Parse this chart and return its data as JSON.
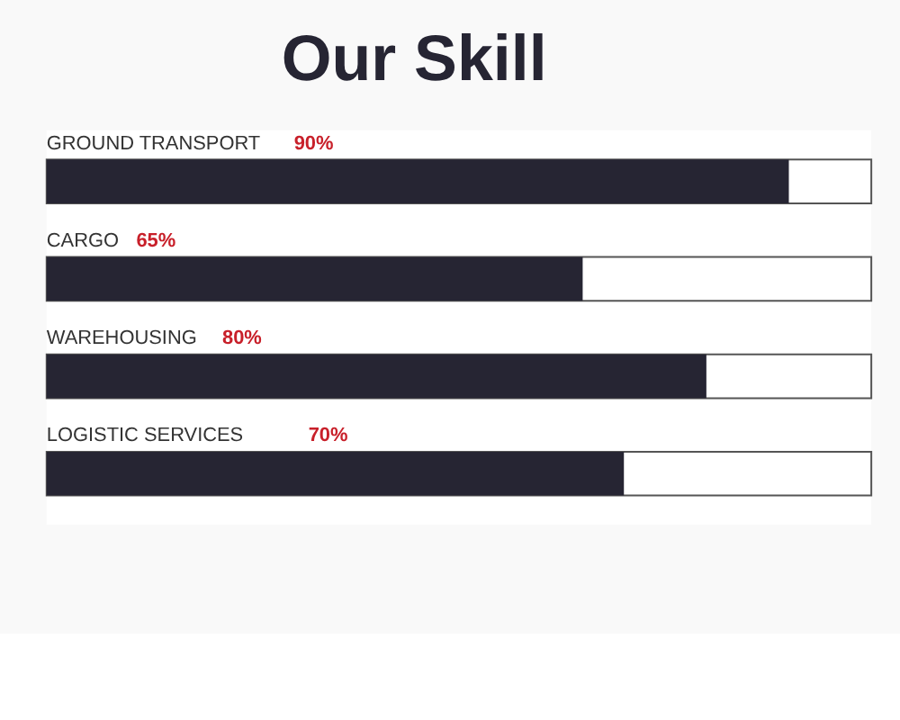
{
  "chart_data": {
    "type": "bar",
    "orientation": "horizontal",
    "title": "Our Skill",
    "categories": [
      "GROUND TRANSPORT",
      "CARGO",
      "WAREHOUSING",
      "LOGISTIC SERVICES"
    ],
    "values": [
      90,
      65,
      80,
      70
    ],
    "value_labels": [
      "90%",
      "65%",
      "80%",
      "70%"
    ],
    "color": "#262533",
    "xlim": [
      0,
      100
    ],
    "tick_labels": false
  }
}
